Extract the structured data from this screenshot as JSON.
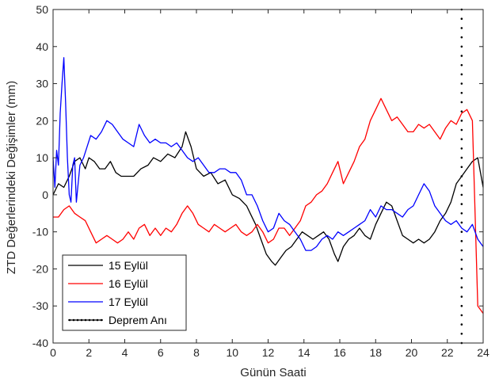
{
  "chart_data": {
    "type": "line",
    "title": "",
    "xlabel": "Günün Saati",
    "ylabel": "ZTD Değerlerindeki Değişimler (mm)",
    "xlim": [
      0,
      24
    ],
    "ylim": [
      -40,
      50
    ],
    "xticks": [
      0,
      2,
      4,
      6,
      8,
      10,
      12,
      14,
      16,
      18,
      20,
      22,
      24
    ],
    "yticks": [
      -40,
      -30,
      -20,
      -10,
      0,
      10,
      20,
      30,
      40,
      50
    ],
    "grid": false,
    "legend_position": "bottom-left",
    "series": [
      {
        "name": "15 Eylül",
        "color": "#000000",
        "x": [
          0,
          0.3,
          0.6,
          0.9,
          1.2,
          1.5,
          1.8,
          2.0,
          2.3,
          2.6,
          2.9,
          3.2,
          3.5,
          3.8,
          4.1,
          4.5,
          4.9,
          5.3,
          5.6,
          6.0,
          6.4,
          6.8,
          7.2,
          7.4,
          7.7,
          8.0,
          8.4,
          8.8,
          9.2,
          9.6,
          10.0,
          10.4,
          10.8,
          11.0,
          11.3,
          11.6,
          11.9,
          12.2,
          12.4,
          12.7,
          13.0,
          13.3,
          13.6,
          13.9,
          14.2,
          14.5,
          14.8,
          15.1,
          15.4,
          15.7,
          15.9,
          16.2,
          16.5,
          16.8,
          17.1,
          17.4,
          17.7,
          18.0,
          18.3,
          18.6,
          18.9,
          19.2,
          19.5,
          19.8,
          20.1,
          20.4,
          20.7,
          21.0,
          21.3,
          21.6,
          21.9,
          22.2,
          22.5,
          22.8,
          23.1,
          23.4,
          23.7,
          24.0
        ],
        "y": [
          0,
          3,
          2,
          5,
          9,
          10,
          7,
          10,
          9,
          7,
          7,
          9,
          6,
          5,
          5,
          5,
          7,
          8,
          10,
          9,
          11,
          10,
          13,
          17,
          13,
          7,
          5,
          6,
          3,
          4,
          0,
          -1,
          -3,
          -5,
          -8,
          -12,
          -16,
          -18,
          -19,
          -17,
          -15,
          -14,
          -12,
          -10,
          -11,
          -12,
          -11,
          -10,
          -12,
          -16,
          -18,
          -14,
          -12,
          -11,
          -9,
          -11,
          -12,
          -8,
          -5,
          -2,
          -3,
          -7,
          -11,
          -12,
          -13,
          -12,
          -13,
          -12,
          -10,
          -7,
          -5,
          -2,
          3,
          5,
          7,
          9,
          10,
          2
        ]
      },
      {
        "name": "16 Eylül",
        "color": "#ff0000",
        "x": [
          0,
          0.3,
          0.6,
          0.9,
          1.2,
          1.5,
          1.8,
          2.1,
          2.4,
          2.7,
          3.0,
          3.3,
          3.6,
          3.9,
          4.2,
          4.5,
          4.8,
          5.1,
          5.4,
          5.7,
          6.0,
          6.3,
          6.6,
          6.9,
          7.2,
          7.5,
          7.8,
          8.1,
          8.4,
          8.7,
          9.0,
          9.3,
          9.6,
          9.9,
          10.2,
          10.5,
          10.8,
          11.1,
          11.4,
          11.7,
          12.0,
          12.3,
          12.6,
          12.9,
          13.2,
          13.5,
          13.8,
          14.1,
          14.4,
          14.7,
          15.0,
          15.3,
          15.6,
          15.9,
          16.2,
          16.5,
          16.8,
          17.1,
          17.4,
          17.7,
          18.0,
          18.3,
          18.6,
          18.9,
          19.2,
          19.5,
          19.8,
          20.1,
          20.4,
          20.7,
          21.0,
          21.3,
          21.6,
          21.9,
          22.2,
          22.5,
          22.8,
          23.1,
          23.4,
          23.7,
          24.0
        ],
        "y": [
          -6,
          -6,
          -4,
          -3,
          -5,
          -6,
          -7,
          -10,
          -13,
          -12,
          -11,
          -12,
          -13,
          -12,
          -10,
          -12,
          -9,
          -8,
          -11,
          -9,
          -11,
          -9,
          -10,
          -8,
          -5,
          -3,
          -5,
          -8,
          -9,
          -10,
          -8,
          -9,
          -10,
          -9,
          -8,
          -10,
          -11,
          -10,
          -8,
          -10,
          -13,
          -12,
          -9,
          -9,
          -11,
          -9,
          -7,
          -3,
          -2,
          0,
          1,
          3,
          6,
          9,
          3,
          6,
          9,
          13,
          15,
          20,
          23,
          26,
          23,
          20,
          21,
          19,
          17,
          17,
          19,
          18,
          19,
          17,
          15,
          18,
          20,
          19,
          22,
          23,
          20,
          -30,
          -32
        ]
      },
      {
        "name": "17 Eylül",
        "color": "#0000ff",
        "x": [
          0,
          0.1,
          0.2,
          0.3,
          0.4,
          0.5,
          0.6,
          0.7,
          0.8,
          0.9,
          1.0,
          1.1,
          1.2,
          1.3,
          1.5,
          1.7,
          1.9,
          2.1,
          2.4,
          2.7,
          3.0,
          3.3,
          3.6,
          3.9,
          4.2,
          4.5,
          4.8,
          5.1,
          5.4,
          5.7,
          6.0,
          6.3,
          6.6,
          6.9,
          7.2,
          7.5,
          7.8,
          8.1,
          8.4,
          8.7,
          9.0,
          9.3,
          9.6,
          9.9,
          10.2,
          10.5,
          10.8,
          11.1,
          11.4,
          11.7,
          12.0,
          12.3,
          12.6,
          12.9,
          13.2,
          13.5,
          13.8,
          14.1,
          14.4,
          14.7,
          15.0,
          15.3,
          15.6,
          15.9,
          16.2,
          16.5,
          16.8,
          17.1,
          17.4,
          17.7,
          18.0,
          18.3,
          18.6,
          18.9,
          19.2,
          19.5,
          19.8,
          20.1,
          20.4,
          20.7,
          21.0,
          21.3,
          21.6,
          21.9,
          22.2,
          22.5,
          22.8,
          23.1,
          23.4,
          23.7,
          24.0
        ],
        "y": [
          10,
          2,
          12,
          8,
          22,
          30,
          37,
          25,
          10,
          0,
          -2,
          8,
          10,
          -2,
          8,
          10,
          13,
          16,
          15,
          17,
          20,
          19,
          17,
          15,
          14,
          13,
          19,
          16,
          14,
          15,
          14,
          14,
          13,
          14,
          12,
          10,
          9,
          10,
          8,
          6,
          6,
          7,
          7,
          6,
          6,
          4,
          0,
          0,
          -3,
          -7,
          -10,
          -9,
          -5,
          -7,
          -8,
          -10,
          -12,
          -15,
          -15,
          -14,
          -12,
          -11,
          -12,
          -10,
          -11,
          -10,
          -9,
          -8,
          -7,
          -4,
          -6,
          -3,
          -4,
          -4,
          -5,
          -6,
          -4,
          -3,
          0,
          3,
          1,
          -3,
          -5,
          -7,
          -8,
          -7,
          -9,
          -10,
          -8,
          -12,
          -14
        ]
      },
      {
        "name": "Deprem Anı",
        "color": "#000000",
        "style": "dotted",
        "x": [
          22.8,
          22.8
        ],
        "y": [
          -40,
          50
        ]
      }
    ]
  }
}
